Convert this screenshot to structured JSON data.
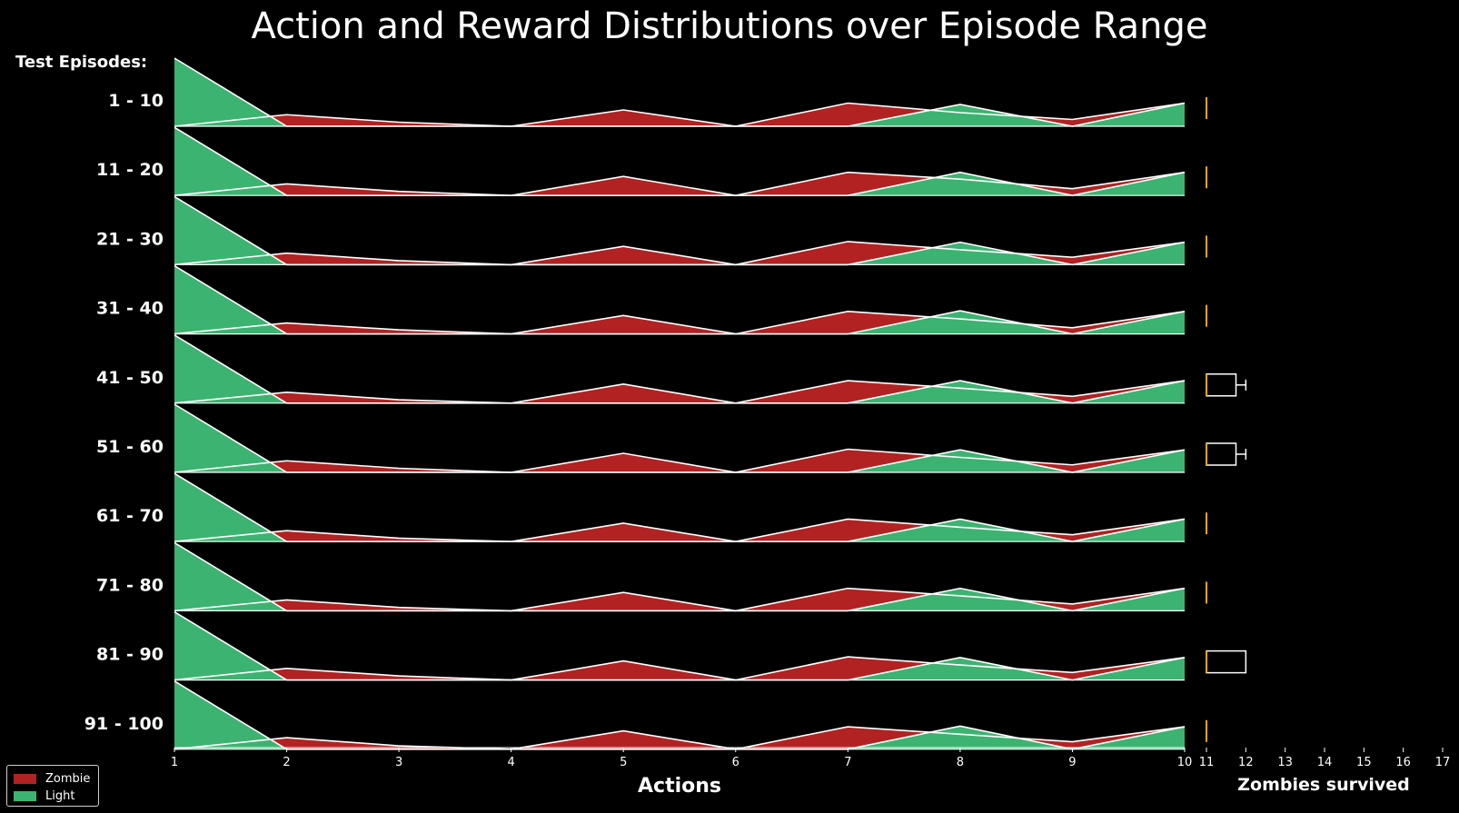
{
  "chart_data": {
    "type": "area",
    "title": "Action and Reward Distributions over Episode Range",
    "row_header": "Test Episodes:",
    "xlabel": "Actions",
    "x2label": "Zombies survived",
    "x": [
      1,
      2,
      3,
      4,
      5,
      6,
      7,
      8,
      9,
      10
    ],
    "x2_ticks": [
      11,
      12,
      13,
      14,
      15,
      16,
      17
    ],
    "x2_range": [
      11,
      17
    ],
    "colors": {
      "Zombie": "#b22222",
      "Light": "#3cb371",
      "box": "#ffa500",
      "background": "#000000",
      "line": "#ffffff"
    },
    "legend": {
      "position": "lower-left",
      "entries": [
        "Zombie",
        "Light"
      ]
    },
    "series_names": [
      "Zombie",
      "Light"
    ],
    "rows": [
      {
        "label": "1 - 10",
        "zombie": [
          0,
          0.17,
          0.06,
          0,
          0.24,
          0,
          0.34,
          0.2,
          0.1,
          0.34
        ],
        "light": [
          1,
          0,
          0,
          0,
          0,
          0,
          0,
          0.32,
          0,
          0.34
        ],
        "zombies_survived": {
          "q1": 11,
          "median": 11,
          "q3": 11,
          "whisker_high": 11
        }
      },
      {
        "label": "11 - 20",
        "zombie": [
          0,
          0.17,
          0.06,
          0,
          0.28,
          0,
          0.34,
          0.24,
          0.1,
          0.34
        ],
        "light": [
          1,
          0,
          0,
          0,
          0,
          0,
          0,
          0.34,
          0,
          0.34
        ],
        "zombies_survived": {
          "q1": 11,
          "median": 11,
          "q3": 11,
          "whisker_high": 11
        }
      },
      {
        "label": "21 - 30",
        "zombie": [
          0,
          0.17,
          0.06,
          0,
          0.27,
          0,
          0.34,
          0.22,
          0.11,
          0.33
        ],
        "light": [
          1,
          0,
          0,
          0,
          0,
          0,
          0,
          0.33,
          0,
          0.33
        ],
        "zombies_survived": {
          "q1": 11,
          "median": 11,
          "q3": 11,
          "whisker_high": 11
        }
      },
      {
        "label": "31 - 40",
        "zombie": [
          0,
          0.16,
          0.06,
          0,
          0.27,
          0,
          0.33,
          0.22,
          0.09,
          0.33
        ],
        "light": [
          1,
          0,
          0,
          0,
          0,
          0,
          0,
          0.34,
          0,
          0.33
        ],
        "zombies_survived": {
          "q1": 11,
          "median": 11,
          "q3": 11,
          "whisker_high": 11
        }
      },
      {
        "label": "41 - 50",
        "zombie": [
          0,
          0.16,
          0.05,
          0,
          0.28,
          0,
          0.33,
          0.22,
          0.1,
          0.33
        ],
        "light": [
          1,
          0,
          0,
          0,
          0,
          0,
          0,
          0.33,
          0,
          0.33
        ],
        "zombies_survived": {
          "q1": 11,
          "median": 11,
          "q3": 11.75,
          "whisker_high": 12
        }
      },
      {
        "label": "51 - 60",
        "zombie": [
          0,
          0.17,
          0.06,
          0,
          0.28,
          0,
          0.34,
          0.22,
          0.11,
          0.33
        ],
        "light": [
          1,
          0,
          0,
          0,
          0,
          0,
          0,
          0.33,
          0,
          0.33
        ],
        "zombies_survived": {
          "q1": 11,
          "median": 11,
          "q3": 11.75,
          "whisker_high": 12
        }
      },
      {
        "label": "61 - 70",
        "zombie": [
          0,
          0.16,
          0.05,
          0,
          0.27,
          0,
          0.33,
          0.21,
          0.1,
          0.33
        ],
        "light": [
          1,
          0,
          0,
          0,
          0,
          0,
          0,
          0.33,
          0,
          0.33
        ],
        "zombies_survived": {
          "q1": 11,
          "median": 11,
          "q3": 11,
          "whisker_high": 11
        }
      },
      {
        "label": "71 - 80",
        "zombie": [
          0,
          0.16,
          0.05,
          0,
          0.27,
          0,
          0.33,
          0.22,
          0.1,
          0.33
        ],
        "light": [
          1,
          0,
          0,
          0,
          0,
          0,
          0,
          0.33,
          0,
          0.33
        ],
        "zombies_survived": {
          "q1": 11,
          "median": 11,
          "q3": 11,
          "whisker_high": 11
        }
      },
      {
        "label": "81 - 90",
        "zombie": [
          0,
          0.17,
          0.06,
          0,
          0.28,
          0,
          0.34,
          0.22,
          0.11,
          0.33
        ],
        "light": [
          1,
          0,
          0,
          0,
          0,
          0,
          0,
          0.33,
          0,
          0.33
        ],
        "zombies_survived": {
          "q1": 11,
          "median": 11,
          "q3": 12,
          "whisker_high": 12
        }
      },
      {
        "label": "91 - 100",
        "zombie": [
          0,
          0.17,
          0.05,
          0,
          0.27,
          0,
          0.33,
          0.22,
          0.11,
          0.33
        ],
        "light": [
          1,
          0,
          0,
          0,
          0,
          0,
          0,
          0.34,
          0,
          0.33
        ],
        "zombies_survived": {
          "q1": 11,
          "median": 11,
          "q3": 11,
          "whisker_high": 11
        }
      }
    ]
  }
}
